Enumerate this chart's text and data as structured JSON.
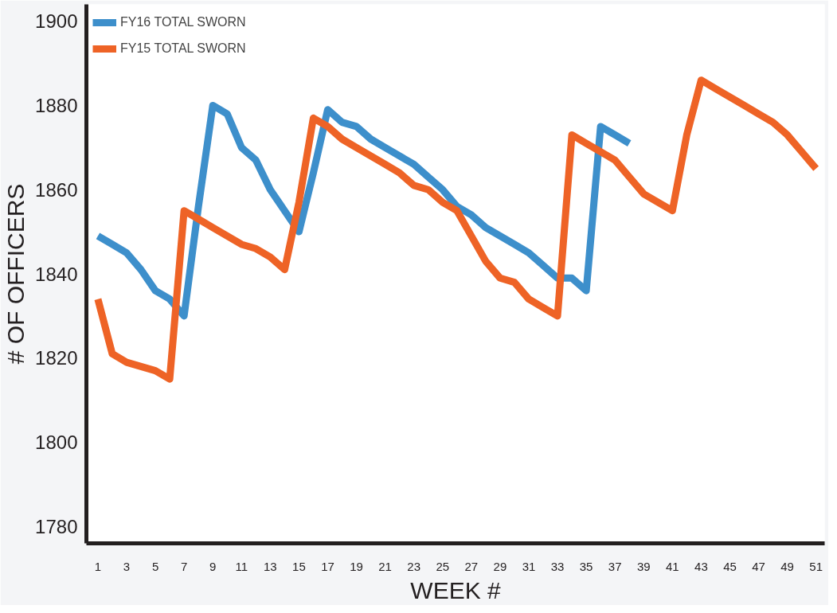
{
  "chart_data": {
    "type": "line",
    "xlabel": "WEEK #",
    "ylabel": "# OF OFFICERS",
    "x": [
      1,
      2,
      3,
      4,
      5,
      6,
      7,
      8,
      9,
      10,
      11,
      12,
      13,
      14,
      15,
      16,
      17,
      18,
      19,
      20,
      21,
      22,
      23,
      24,
      25,
      26,
      27,
      28,
      29,
      30,
      31,
      32,
      33,
      34,
      35,
      36,
      37,
      38,
      39,
      40,
      41,
      42,
      43,
      44,
      45,
      46,
      47,
      48,
      49,
      50,
      51
    ],
    "series": [
      {
        "name": "FY16 TOTAL SWORN",
        "color": "#3d8fcb",
        "values": [
          1849,
          1847,
          1845,
          1841,
          1836,
          1834,
          1830,
          1856,
          1880,
          1878,
          1870,
          1867,
          1860,
          1855,
          1850,
          1864,
          1879,
          1876,
          1875,
          1872,
          1870,
          1868,
          1866,
          1863,
          1860,
          1856,
          1854,
          1851,
          1849,
          1847,
          1845,
          1842,
          1839,
          1839,
          1836,
          1875,
          1873,
          1871,
          null,
          null,
          null,
          null,
          null,
          null,
          null,
          null,
          null,
          null,
          null,
          null,
          null
        ]
      },
      {
        "name": "FY15 TOTAL SWORN",
        "color": "#ee6326",
        "values": [
          1834,
          1821,
          1819,
          1818,
          1817,
          1815,
          1855,
          1853,
          1851,
          1849,
          1847,
          1846,
          1844,
          1841,
          1857,
          1877,
          1875,
          1872,
          1870,
          1868,
          1866,
          1864,
          1861,
          1860,
          1857,
          1855,
          1849,
          1843,
          1839,
          1838,
          1834,
          1832,
          1830,
          1873,
          1871,
          1869,
          1867,
          1863,
          1859,
          1857,
          1855,
          1873,
          1886,
          1884,
          1882,
          1880,
          1878,
          1876,
          1873,
          1869,
          1865
        ]
      }
    ],
    "xlim": [
      0.2,
      51.6
    ],
    "xticks": [
      1,
      3,
      5,
      7,
      9,
      11,
      13,
      15,
      17,
      19,
      21,
      23,
      25,
      27,
      29,
      31,
      33,
      35,
      37,
      39,
      41,
      43,
      45,
      47,
      49,
      51
    ],
    "ylim": [
      1776,
      1904
    ],
    "yticks": [
      1780,
      1800,
      1820,
      1840,
      1860,
      1880,
      1900
    ],
    "grid": false,
    "legend": "top left",
    "marker": "none",
    "line_style": "solid"
  }
}
